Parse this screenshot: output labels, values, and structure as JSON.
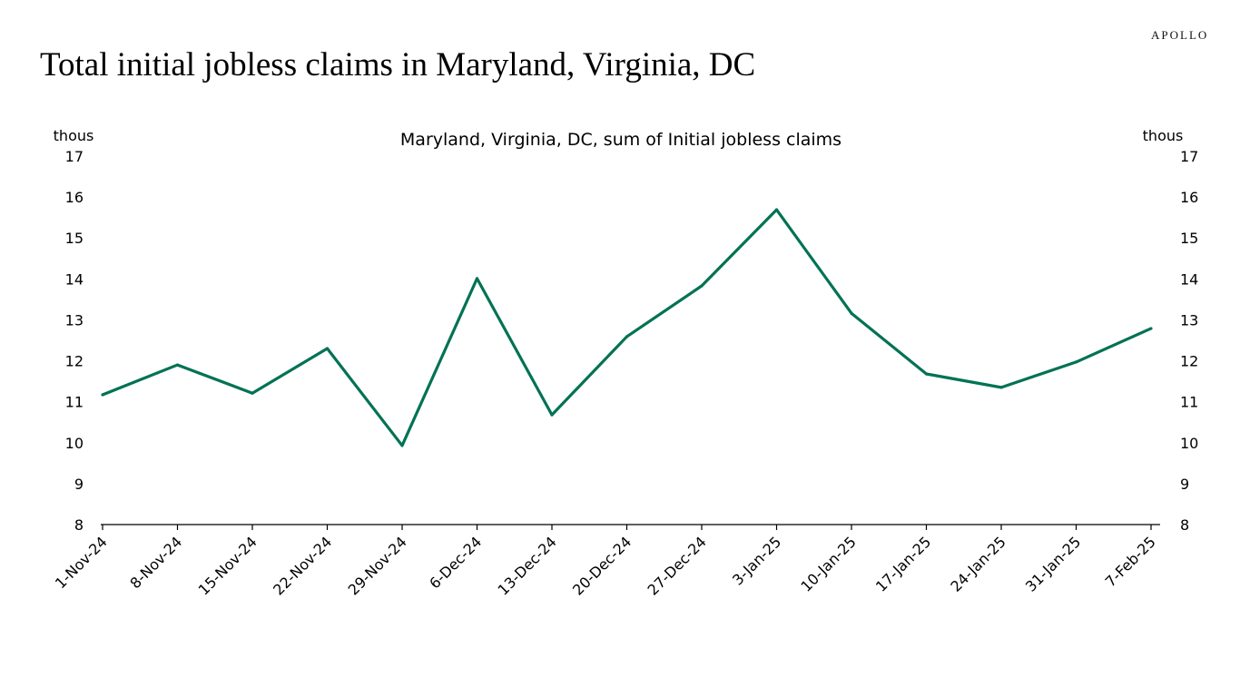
{
  "header": {
    "title": "Total initial jobless claims in Maryland, Virginia, DC",
    "logo": "APOLLO"
  },
  "chart_data": {
    "type": "line",
    "title": "Maryland, Virginia, DC, sum of Initial jobless claims",
    "ylabel_left": "thous",
    "ylabel_right": "thous",
    "xlabel": "",
    "ylim": [
      8,
      17
    ],
    "yticks": [
      8,
      9,
      10,
      11,
      12,
      13,
      14,
      15,
      16,
      17
    ],
    "grid": false,
    "categories": [
      "1-Nov-24",
      "8-Nov-24",
      "15-Nov-24",
      "22-Nov-24",
      "29-Nov-24",
      "6-Dec-24",
      "13-Dec-24",
      "20-Dec-24",
      "27-Dec-24",
      "3-Jan-25",
      "10-Jan-25",
      "17-Jan-25",
      "24-Jan-25",
      "31-Jan-25",
      "7-Feb-25"
    ],
    "series": [
      {
        "name": "Maryland, Virginia, DC, sum of Initial jobless claims",
        "color": "#007254",
        "values": [
          11.17,
          11.9,
          11.21,
          12.3,
          9.93,
          14.01,
          10.68,
          12.59,
          13.83,
          15.69,
          13.16,
          11.68,
          11.35,
          11.97,
          12.79
        ]
      }
    ]
  }
}
